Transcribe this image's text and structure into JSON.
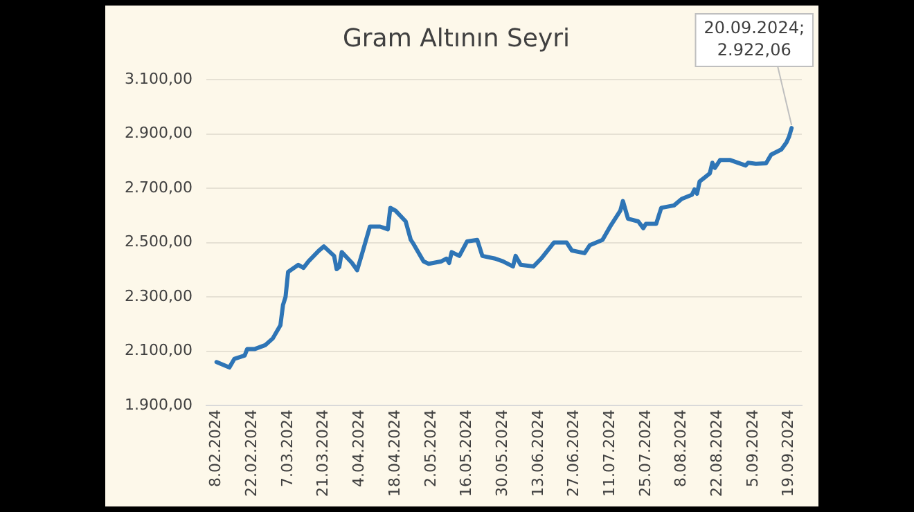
{
  "chart_data": {
    "type": "line",
    "title": "Gram Altının Seyri",
    "x": [
      "2024-02-08",
      "2024-02-13",
      "2024-02-15",
      "2024-02-19",
      "2024-02-20",
      "2024-02-23",
      "2024-02-27",
      "2024-03-01",
      "2024-03-04",
      "2024-03-05",
      "2024-03-06",
      "2024-03-07",
      "2024-03-11",
      "2024-03-13",
      "2024-03-15",
      "2024-03-19",
      "2024-03-21",
      "2024-03-25",
      "2024-03-26",
      "2024-03-27",
      "2024-03-28",
      "2024-04-01",
      "2024-04-03",
      "2024-04-05",
      "2024-04-08",
      "2024-04-12",
      "2024-04-15",
      "2024-04-16",
      "2024-04-18",
      "2024-04-22",
      "2024-04-24",
      "2024-04-25",
      "2024-04-29",
      "2024-05-01",
      "2024-05-06",
      "2024-05-08",
      "2024-05-09",
      "2024-05-10",
      "2024-05-13",
      "2024-05-16",
      "2024-05-20",
      "2024-05-22",
      "2024-05-27",
      "2024-05-30",
      "2024-06-03",
      "2024-06-04",
      "2024-06-06",
      "2024-06-11",
      "2024-06-14",
      "2024-06-19",
      "2024-06-24",
      "2024-06-26",
      "2024-07-01",
      "2024-07-03",
      "2024-07-08",
      "2024-07-11",
      "2024-07-15",
      "2024-07-16",
      "2024-07-18",
      "2024-07-22",
      "2024-07-24",
      "2024-07-25",
      "2024-07-29",
      "2024-07-31",
      "2024-08-05",
      "2024-08-08",
      "2024-08-12",
      "2024-08-13",
      "2024-08-14",
      "2024-08-15",
      "2024-08-19",
      "2024-08-20",
      "2024-08-21",
      "2024-08-23",
      "2024-08-27",
      "2024-09-02",
      "2024-09-03",
      "2024-09-06",
      "2024-09-10",
      "2024-09-12",
      "2024-09-16",
      "2024-09-18",
      "2024-09-19",
      "2024-09-20"
    ],
    "series": [
      {
        "color": "#2e75b6",
        "values": [
          2060,
          2040,
          2072,
          2084,
          2108,
          2108,
          2122,
          2147,
          2196,
          2270,
          2300,
          2392,
          2418,
          2407,
          2431,
          2470,
          2486,
          2451,
          2402,
          2410,
          2465,
          2425,
          2398,
          2461,
          2559,
          2559,
          2549,
          2628,
          2618,
          2578,
          2510,
          2496,
          2431,
          2422,
          2431,
          2441,
          2425,
          2465,
          2451,
          2504,
          2510,
          2451,
          2441,
          2431,
          2412,
          2451,
          2418,
          2412,
          2441,
          2500,
          2500,
          2471,
          2461,
          2490,
          2510,
          2559,
          2618,
          2653,
          2588,
          2578,
          2553,
          2569,
          2569,
          2628,
          2637,
          2661,
          2676,
          2696,
          2680,
          2725,
          2755,
          2794,
          2775,
          2804,
          2804,
          2784,
          2794,
          2790,
          2792,
          2824,
          2843,
          2869,
          2890,
          2922.06
        ]
      }
    ],
    "xlim": [
      "2024-02-04",
      "2024-09-24"
    ],
    "xticks": [
      {
        "value": "2024-02-08",
        "label": "8.02.2024"
      },
      {
        "value": "2024-02-22",
        "label": "22.02.2024"
      },
      {
        "value": "2024-03-07",
        "label": "7.03.2024"
      },
      {
        "value": "2024-03-21",
        "label": "21.03.2024"
      },
      {
        "value": "2024-04-04",
        "label": "4.04.2024"
      },
      {
        "value": "2024-04-18",
        "label": "18.04.2024"
      },
      {
        "value": "2024-05-02",
        "label": "2.05.2024"
      },
      {
        "value": "2024-05-16",
        "label": "16.05.2024"
      },
      {
        "value": "2024-05-30",
        "label": "30.05.2024"
      },
      {
        "value": "2024-06-13",
        "label": "13.06.2024"
      },
      {
        "value": "2024-06-27",
        "label": "27.06.2024"
      },
      {
        "value": "2024-07-11",
        "label": "11.07.2024"
      },
      {
        "value": "2024-07-25",
        "label": "25.07.2024"
      },
      {
        "value": "2024-08-08",
        "label": "8.08.2024"
      },
      {
        "value": "2024-08-22",
        "label": "22.08.2024"
      },
      {
        "value": "2024-09-05",
        "label": "5.09.2024"
      },
      {
        "value": "2024-09-19",
        "label": "19.09.2024"
      }
    ],
    "ylim": [
      1900,
      3100
    ],
    "yticks": [
      {
        "value": 1900,
        "label": "1.900,00"
      },
      {
        "value": 2100,
        "label": "2.100,00"
      },
      {
        "value": 2300,
        "label": "2.300,00"
      },
      {
        "value": 2500,
        "label": "2.500,00"
      },
      {
        "value": 2700,
        "label": "2.700,00"
      },
      {
        "value": 2900,
        "label": "2.900,00"
      },
      {
        "value": 3100,
        "label": "3.100,00"
      }
    ],
    "annotations": [
      {
        "text": "20.09.2024; 2.922,06",
        "x": "2024-09-20",
        "y": 2922.06
      }
    ],
    "grid": "y",
    "legend": false,
    "marker": "none",
    "line_style": "solid"
  }
}
